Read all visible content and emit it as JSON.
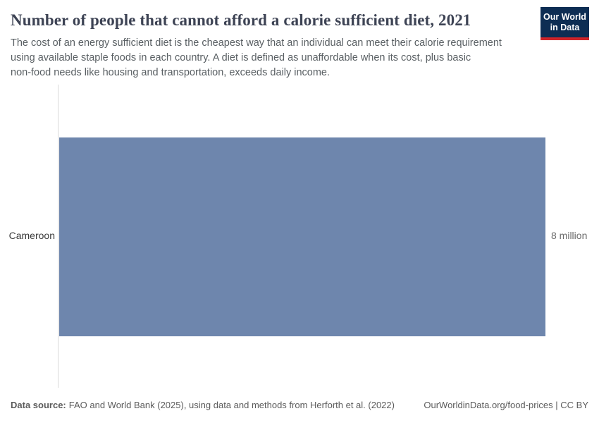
{
  "header": {
    "title": "Number of people that cannot afford a calorie sufficient diet, 2021",
    "subtitle_lines": [
      "The cost of an energy sufficient diet is the cheapest way that an individual can meet their calorie requirement",
      "using available staple foods in each country. A diet is defined as unaffordable when its cost, plus basic",
      "non-food needs like housing and transportation, exceeds daily income."
    ],
    "logo": {
      "line1": "Our World",
      "line2": "in Data"
    }
  },
  "chart_data": {
    "type": "bar",
    "orientation": "horizontal",
    "title": "Number of people that cannot afford a calorie sufficient diet, 2021",
    "categories": [
      "Cameroon"
    ],
    "values": [
      8000000
    ],
    "value_labels": [
      "8 million"
    ],
    "xlabel": "",
    "ylabel": "",
    "grid": false,
    "legend": false,
    "bar_color": "#6e86ad",
    "axis_line_color": "#d9d9d9"
  },
  "footer": {
    "data_source_label": "Data source:",
    "data_source_text": "FAO and World Bank (2025), using data and methods from Herforth et al. (2022)",
    "link_text": "OurWorldinData.org/food-prices | CC BY"
  },
  "colors": {
    "bar": "#6e86ad",
    "logo_background": "#0d2d53",
    "logo_stripe": "#cf2429",
    "title_text": "#3d4354",
    "body_text": "#595f63"
  }
}
